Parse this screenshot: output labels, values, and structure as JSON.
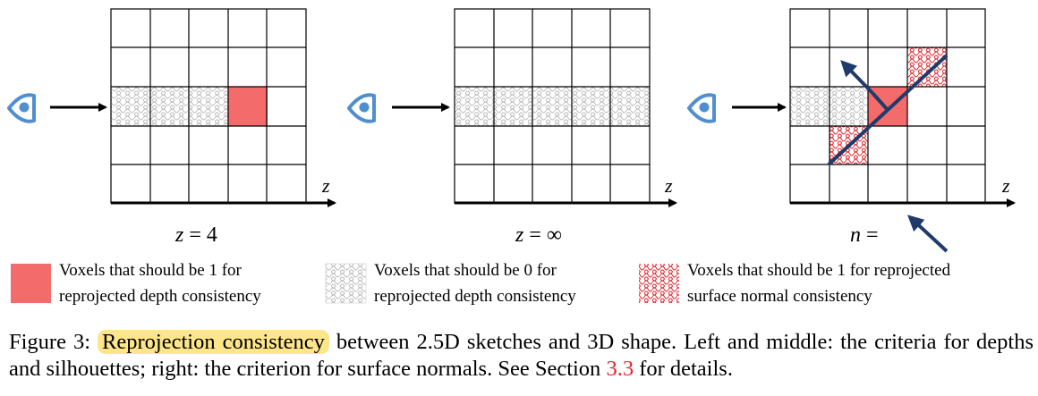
{
  "colors": {
    "grid_line": "#000000",
    "red_voxel": "#f46b6b",
    "grey_pattern": "#b9b9b9",
    "red_pattern": "#e0242b",
    "normal_arrow": "#1f3b6b",
    "eye_blue": "#4f8fd0",
    "highlight": "#fde68a",
    "ref_red": "#e0242b"
  },
  "icons": {
    "eye": "eye-icon",
    "arrow": "arrow-right-icon"
  },
  "panels": [
    {
      "axis_label": "z",
      "eq_var": "z",
      "eq_rest": " = 4"
    },
    {
      "axis_label": "z",
      "eq_var": "z",
      "eq_rest": " = ∞"
    },
    {
      "axis_label": "z",
      "eq_var": "n",
      "eq_rest": " ="
    }
  ],
  "legend": [
    {
      "line1": "Voxels that should be 1 for",
      "line2": "reprojected depth consistency"
    },
    {
      "line1": "Voxels that should be 0 for",
      "line2": "reprojected depth consistency"
    },
    {
      "line1": "Voxels that should be 1 for reprojected",
      "line2": "surface normal consistency"
    }
  ],
  "caption": {
    "prefix": "Figure 3: ",
    "highlight": "Reprojection consistency",
    "rest": " between 2.5D sketches and 3D shape. Left and middle: the criteria for depths and silhouettes; right: the criterion for surface normals. See Section ",
    "ref": "3.3",
    "suffix": " for details."
  }
}
